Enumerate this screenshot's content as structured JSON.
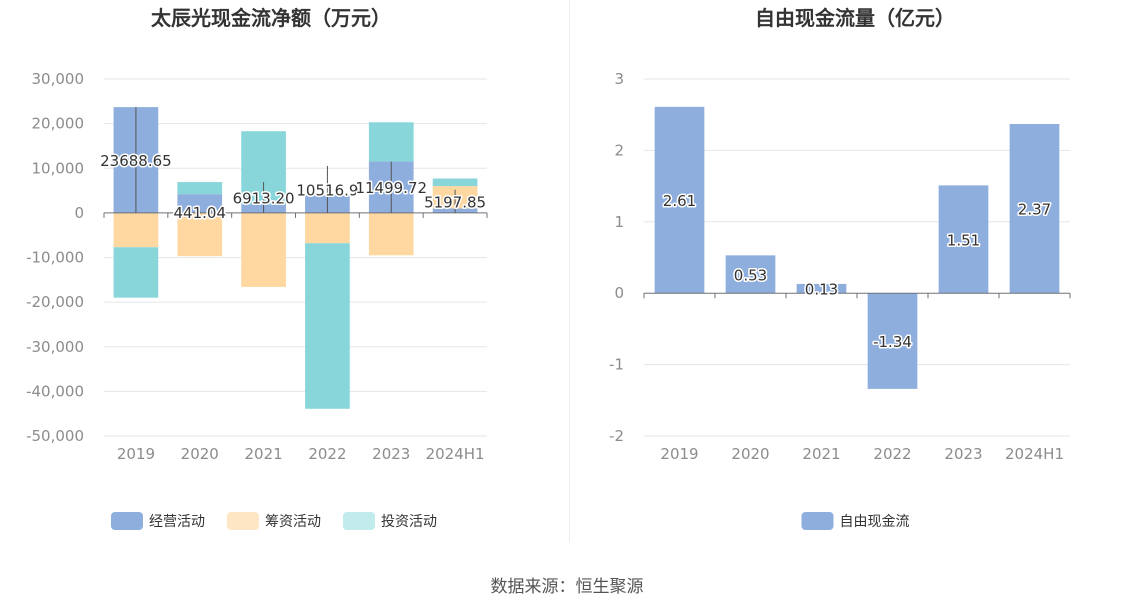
{
  "source_text": "数据来源：恒生聚源",
  "chart_data": [
    {
      "type": "bar",
      "stacked": true,
      "title": "太辰光现金流净额（万元）",
      "categories": [
        "2019",
        "2020",
        "2021",
        "2022",
        "2023",
        "2024H1"
      ],
      "ylim": [
        -50000,
        30000
      ],
      "yticks": [
        30000,
        20000,
        10000,
        0,
        -10000,
        -20000,
        -30000,
        -40000,
        -50000
      ],
      "ytick_labels": [
        "30,000",
        "20,000",
        "10,000",
        "0",
        "-10,000",
        "-20,000",
        "-30,000",
        "-40,000",
        "-50,000"
      ],
      "grid": true,
      "legend_position": "bottom",
      "series": [
        {
          "name": "经营活动",
          "color": "#8eaedd",
          "values": [
            23700,
            4200,
            1900,
            3900,
            11500,
            1000
          ]
        },
        {
          "name": "筹资活动",
          "color": "#fed8a0",
          "values": [
            -7700,
            -9700,
            -16600,
            -6800,
            -9500,
            5000
          ]
        },
        {
          "name": "投资活动",
          "color": "#88d6da",
          "values": [
            -11300,
            2700,
            16400,
            -37100,
            8800,
            1700
          ]
        }
      ],
      "net_values": [
        23688.65,
        441.04,
        6913.2,
        10516.9,
        11499.72,
        5197.85
      ],
      "net_labels": [
        "23688.65",
        "441.04",
        "6913.20",
        "10516.9",
        "11499.72",
        "5197.85"
      ],
      "legend": [
        {
          "name": "经营活动",
          "color": "#8eaedd"
        },
        {
          "name": "筹资活动",
          "color": "#fee6c4"
        },
        {
          "name": "投资活动",
          "color": "#c2ebec"
        }
      ]
    },
    {
      "type": "bar",
      "title": "自由现金流量（亿元）",
      "categories": [
        "2019",
        "2020",
        "2021",
        "2022",
        "2023",
        "2024H1"
      ],
      "ylim": [
        -2,
        3
      ],
      "yticks": [
        3,
        2,
        1,
        0,
        -1,
        -2
      ],
      "ytick_labels": [
        "3",
        "2",
        "1",
        "0",
        "-1",
        "-2"
      ],
      "grid": true,
      "legend_position": "bottom",
      "series": [
        {
          "name": "自由现金流",
          "color": "#8eaedd",
          "values": [
            2.61,
            0.53,
            0.13,
            -1.34,
            1.51,
            2.37
          ]
        }
      ],
      "value_labels": [
        "2.61",
        "0.53",
        "0.13",
        "-1.34",
        "1.51",
        "2.37"
      ],
      "legend": [
        {
          "name": "自由现金流",
          "color": "#8eaedd"
        }
      ]
    }
  ]
}
